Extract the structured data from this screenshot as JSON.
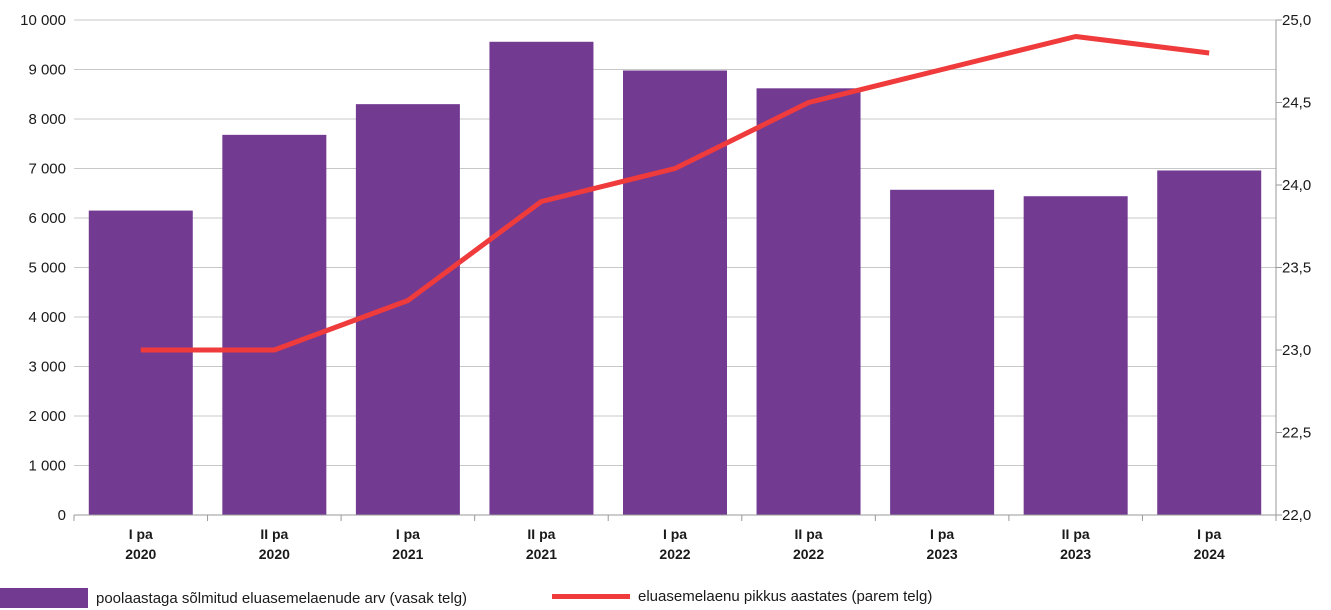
{
  "chart_data": {
    "type": "bar+line",
    "categories": [
      [
        "I pa",
        "2020"
      ],
      [
        "II pa",
        "2020"
      ],
      [
        "I pa",
        "2021"
      ],
      [
        "II pa",
        "2021"
      ],
      [
        "I pa",
        "2022"
      ],
      [
        "II pa",
        "2022"
      ],
      [
        "I pa",
        "2023"
      ],
      [
        "II pa",
        "2023"
      ],
      [
        "I pa",
        "2024"
      ]
    ],
    "series": [
      {
        "name": "poolaastaga sõlmitud eluasemelaenude arv (vasak telg)",
        "type": "bar",
        "axis": "left",
        "color": "#733a92",
        "values": [
          6150,
          7680,
          8300,
          9560,
          8980,
          8620,
          6570,
          6440,
          6960
        ]
      },
      {
        "name": "eluasemelaenu pikkus aastates (parem telg)",
        "type": "line",
        "axis": "right",
        "color": "#ef3b3b",
        "values": [
          23.0,
          23.0,
          23.3,
          23.9,
          24.1,
          24.5,
          24.7,
          24.9,
          24.8
        ]
      }
    ],
    "left_axis": {
      "ylim": [
        0,
        10000
      ],
      "ticks": [
        0,
        1000,
        2000,
        3000,
        4000,
        5000,
        6000,
        7000,
        8000,
        9000,
        10000
      ],
      "tick_labels": [
        "0",
        "1 000",
        "2 000",
        "3 000",
        "4 000",
        "5 000",
        "6 000",
        "7 000",
        "8 000",
        "9 000",
        "10 000"
      ]
    },
    "right_axis": {
      "ylim": [
        22.0,
        25.0
      ],
      "ticks": [
        22.0,
        22.5,
        23.0,
        23.5,
        24.0,
        24.5,
        25.0
      ],
      "tick_labels": [
        "22,0",
        "22,5",
        "23,0",
        "23,5",
        "24,0",
        "24,5",
        "25,0"
      ]
    },
    "grid": true,
    "legend_position": "bottom-left"
  }
}
